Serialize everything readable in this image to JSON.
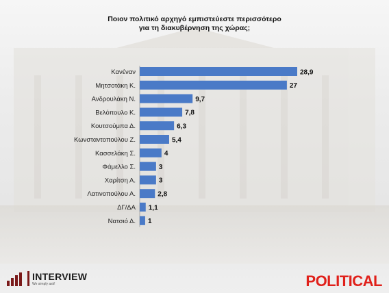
{
  "chart_data": {
    "type": "bar",
    "orientation": "horizontal",
    "title": "Ποιον πολιτικό αρχηγό εμπιστεύεστε περισσότερο για τη διακυβέρνηση της χώρας;",
    "categories": [
      "Κανέναν",
      "Μητσοτάκη Κ.",
      "Ανδρουλάκη Ν.",
      "Βελόπουλο Κ.",
      "Κουτσούμπα Δ.",
      "Κωνσταντοπούλου Ζ.",
      "Κασσελάκη Σ.",
      "Φάμελλο Σ.",
      "Χαρίτση Α.",
      "Λατινοπούλου Α.",
      "ΔΓ/ΔΑ",
      "Νατσιό Δ."
    ],
    "values": [
      28.9,
      27,
      9.7,
      7.8,
      6.3,
      5.4,
      4,
      3,
      3,
      2.8,
      1.1,
      1
    ],
    "value_labels": [
      "28,9",
      "27",
      "9,7",
      "7,8",
      "6,3",
      "5,4",
      "4",
      "3",
      "3",
      "2,8",
      "1,1",
      "1"
    ],
    "bar_color": "#4a7ac7",
    "grid": false,
    "legend": "none"
  },
  "header": {
    "title_line1": "Ποιον πολιτικό αρχηγό εμπιστεύεστε περισσότερο",
    "title_line2": "για τη διακυβέρνηση της χώρας;"
  },
  "footer": {
    "interview_logo": "INTERVIEW",
    "interview_tagline": "We simply ask!",
    "political_logo": "POLITICAL",
    "political_color": "#e0201a"
  }
}
